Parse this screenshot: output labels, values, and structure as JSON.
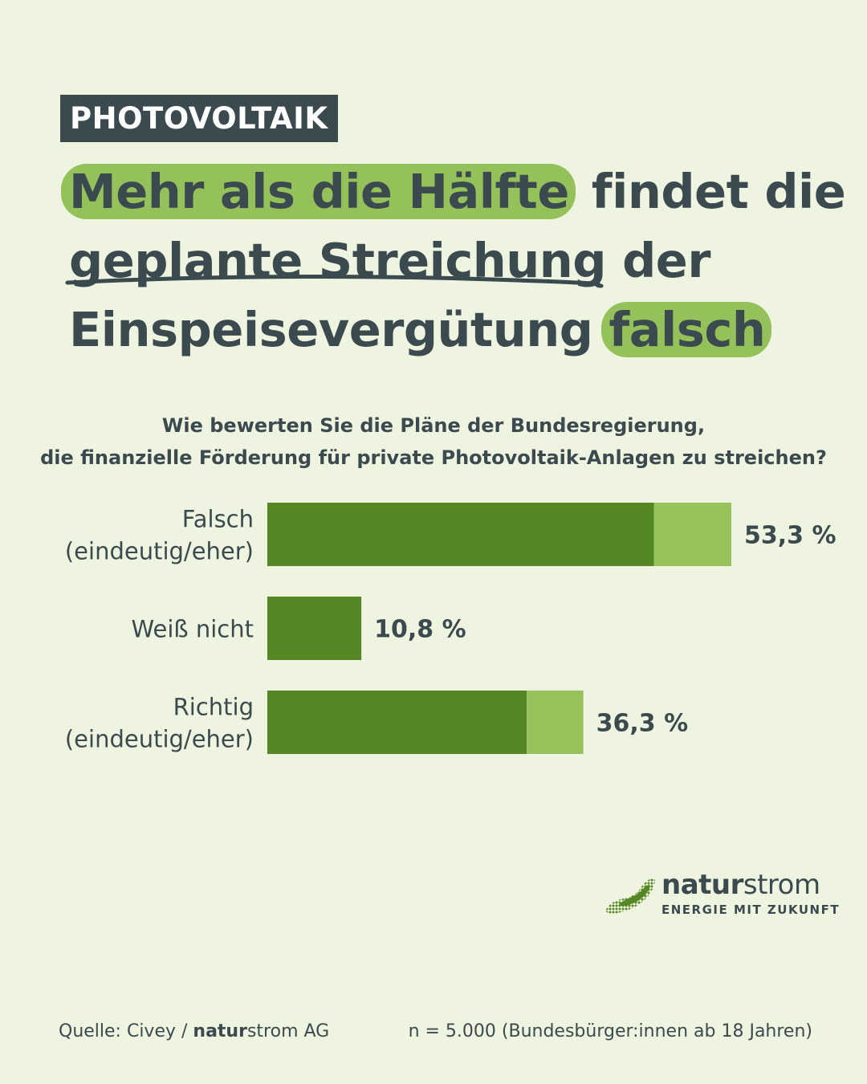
{
  "tag": "PHOTOVOLTAIK",
  "headline": {
    "line1_highlight": "Mehr als die Hälfte",
    "line1_rest": " findet die",
    "line2_underline": "geplante Streichung",
    "line2_rest": " der",
    "line3_start": "Einspeisevergütung ",
    "line3_highlight": "falsch"
  },
  "colors": {
    "background": "#eff4e1",
    "text": "#3a4a4e",
    "dark_green": "#558725",
    "light_green": "#97c15a",
    "highlight": "#94c15a"
  },
  "chart_data": {
    "type": "bar",
    "orientation": "horizontal",
    "stacked": true,
    "title_lines": [
      "Wie bewerten Sie die Pläne der Bundesregierung,",
      "die finanzielle Förderung für private Photovoltaik-Anlagen zu streichen?"
    ],
    "categories": [
      [
        "Falsch",
        "(eindeutig/eher)"
      ],
      [
        "Weiß nicht"
      ],
      [
        "Richtig",
        "(eindeutig/eher)"
      ]
    ],
    "series": [
      {
        "values": [
          44.4,
          10.8,
          29.8
        ],
        "color": "#558725"
      },
      {
        "values": [
          8.9,
          0,
          6.5
        ],
        "color": "#97c15a"
      }
    ],
    "totals": [
      53.3,
      10.8,
      36.3
    ],
    "value_labels": [
      "53,3 %",
      "10,8 %",
      "36,3 %"
    ],
    "xlim": [
      0,
      53.3
    ]
  },
  "logo": {
    "name_bold": "natur",
    "name_rest": "strom",
    "tagline": "ENERGIE MIT ZUKUNFT"
  },
  "footer": {
    "source_prefix": "Quelle: Civey / ",
    "source_bold": "natur",
    "source_rest": "strom AG",
    "sample": "n = 5.000 (Bundesbürger:innen ab 18 Jahren)"
  }
}
